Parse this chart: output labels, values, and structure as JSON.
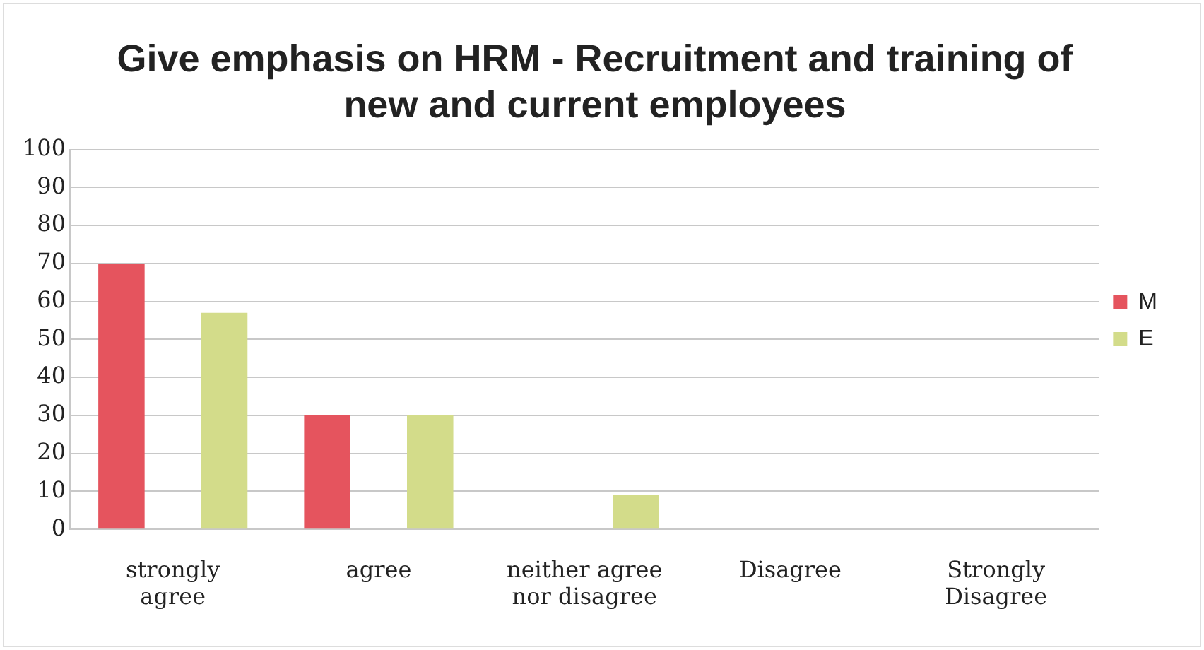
{
  "chart_data": {
    "type": "bar",
    "title": "Give emphasis on HRM - Recruitment and training of new and current employees",
    "categories": [
      "strongly agree",
      "agree",
      "neither agree nor disagree",
      "Disagree",
      "Strongly Disagree"
    ],
    "series": [
      {
        "name": "M",
        "color": "#e5545e",
        "values": [
          70,
          30,
          0,
          0,
          0
        ]
      },
      {
        "name": "E",
        "color": "#d3dc8a",
        "values": [
          57,
          30,
          9,
          0,
          0
        ]
      }
    ],
    "ylim": [
      0,
      100
    ],
    "yticks": [
      0,
      10,
      20,
      30,
      40,
      50,
      60,
      70,
      80,
      90,
      100
    ],
    "grid": "y",
    "legend": "right"
  }
}
